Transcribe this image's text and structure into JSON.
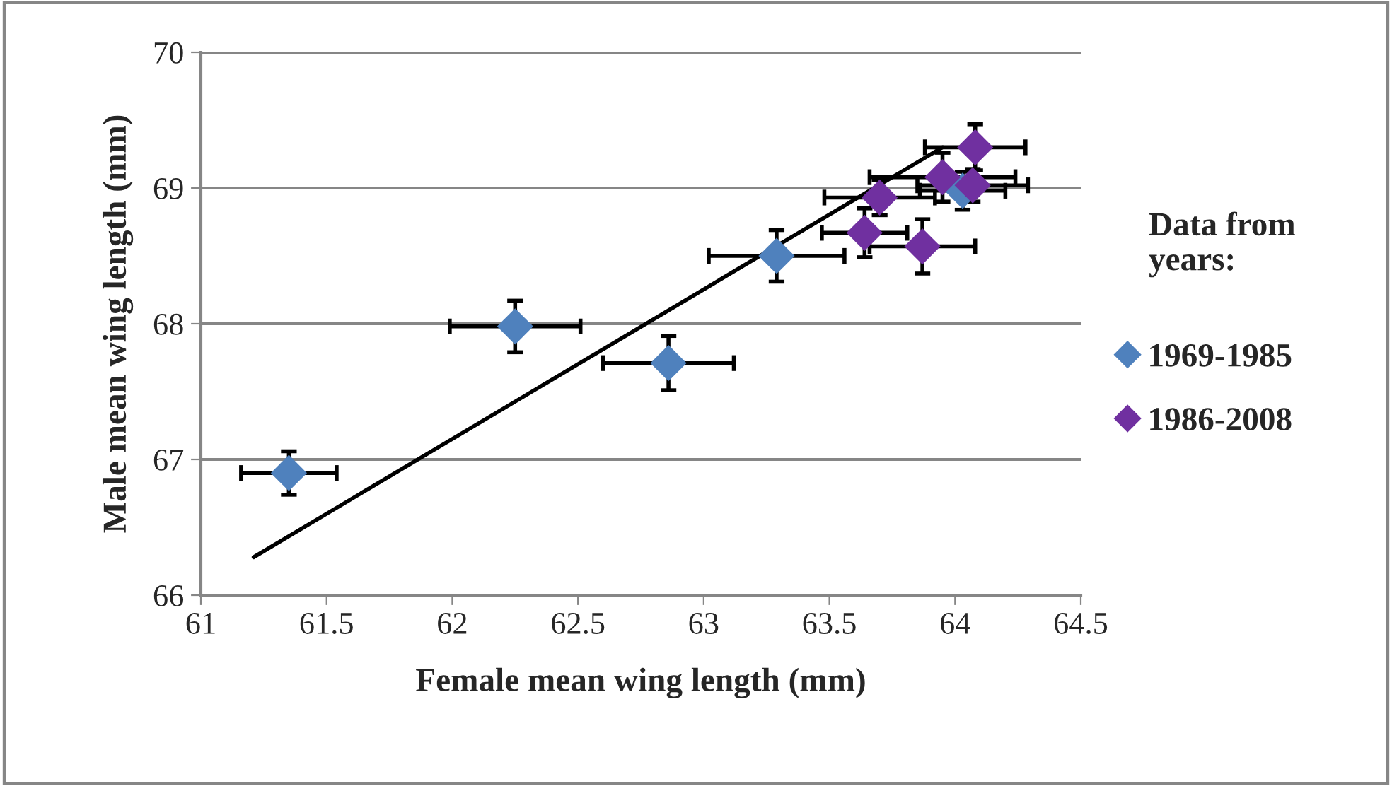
{
  "chart_data": {
    "type": "scatter",
    "xlabel": "Female mean wing length (mm)",
    "ylabel": "Male mean wing length (mm)",
    "legend_title": "Data from years:",
    "legend": "right",
    "grid": "y",
    "xlim": [
      61,
      64.5
    ],
    "xticks": [
      61,
      61.5,
      62,
      62.5,
      63,
      63.5,
      64,
      64.5
    ],
    "ylim": [
      66,
      70
    ],
    "yticks": [
      66,
      67,
      68,
      69,
      70
    ],
    "series": [
      {
        "name": "1969-1985",
        "color": "#4f81bd",
        "marker": "diamond",
        "x": [
          61.35,
          62.25,
          62.86,
          63.29,
          64.03
        ],
        "values": [
          66.9,
          67.98,
          67.71,
          68.5,
          68.98
        ],
        "xerrors": [
          0.19,
          0.26,
          0.26,
          0.27,
          0.17
        ],
        "errors": [
          0.16,
          0.19,
          0.2,
          0.19,
          0.14
        ]
      },
      {
        "name": "1986-2008",
        "color": "#7030a0",
        "marker": "diamond",
        "x": [
          63.64,
          63.7,
          63.87,
          63.95,
          64.07,
          64.08
        ],
        "values": [
          68.67,
          68.93,
          68.57,
          69.08,
          69.02,
          69.3
        ],
        "xerrors": [
          0.17,
          0.22,
          0.21,
          0.29,
          0.22,
          0.2
        ],
        "errors": [
          0.18,
          0.13,
          0.2,
          0.18,
          0.12,
          0.17
        ]
      },
      {
        "type": "line",
        "color": "#000000",
        "marker": "none",
        "x": [
          61.21,
          63.95
        ],
        "values": [
          66.28,
          69.3
        ]
      }
    ]
  }
}
